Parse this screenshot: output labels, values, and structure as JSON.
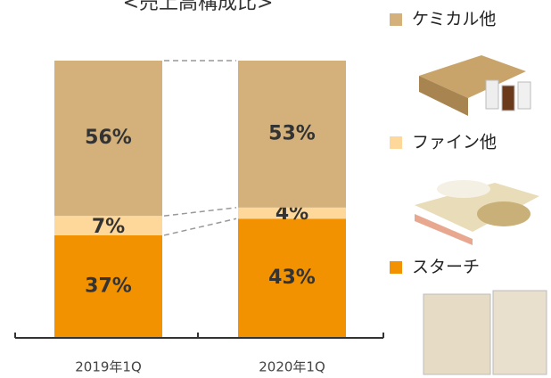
{
  "chart_data": {
    "type": "stacked_bar",
    "title": "<売上高構成比>",
    "categories": [
      "2019年1Q",
      "2020年1Q"
    ],
    "series": [
      {
        "name": "スターチ",
        "color": "#f39200",
        "values": [
          37,
          43
        ],
        "value_labels": [
          "37%",
          "43%"
        ]
      },
      {
        "name": "ファイン他",
        "color": "#fdd89a",
        "values": [
          7,
          4
        ],
        "value_labels": [
          "7%",
          "4%"
        ]
      },
      {
        "name": "ケミカル他",
        "color": "#d4b07a",
        "values": [
          56,
          53
        ],
        "value_labels": [
          "56%",
          "53%"
        ]
      }
    ],
    "ylim": [
      0,
      100
    ]
  }
}
